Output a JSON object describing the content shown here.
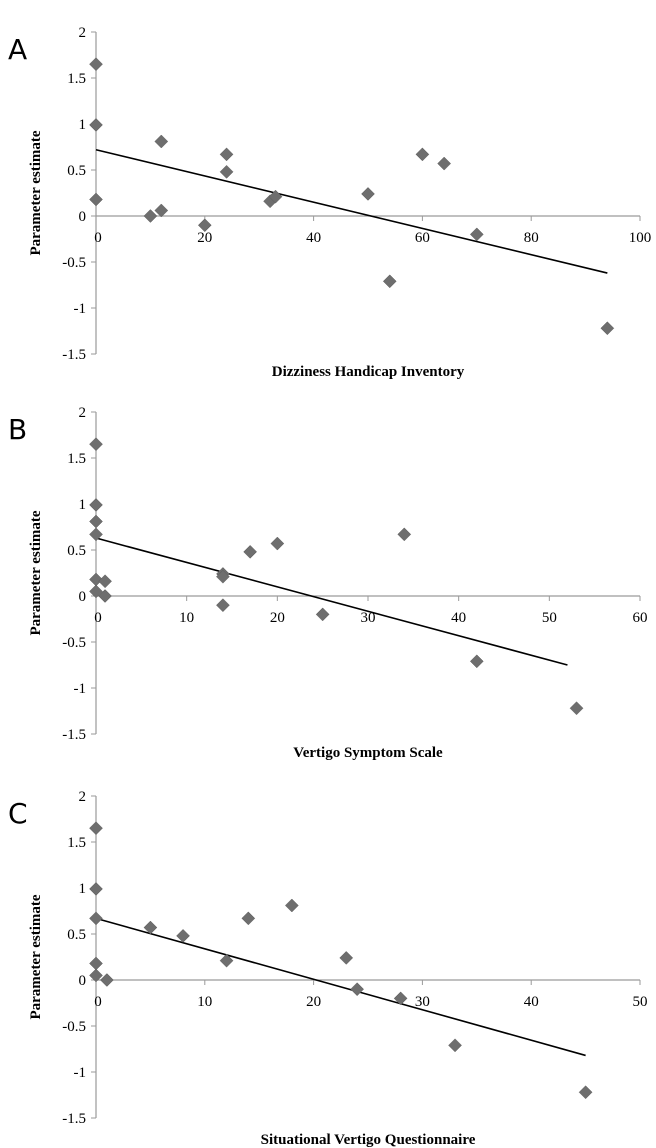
{
  "chart_data": [
    {
      "type": "scatter",
      "panel_label": "A",
      "xlabel": "Dizziness Handicap Inventory",
      "ylabel": "Parameter estimate",
      "xlim": [
        0,
        100
      ],
      "ylim": [
        -1.5,
        2
      ],
      "x_ticks": [
        "0",
        "20",
        "40",
        "60",
        "80",
        "100"
      ],
      "y_ticks": [
        "2",
        "1.5",
        "1",
        "0.5",
        "0",
        "-0.5",
        "-1",
        "-1.5"
      ],
      "points": [
        {
          "x": 0,
          "y": 1.65
        },
        {
          "x": 0,
          "y": 0.99
        },
        {
          "x": 0,
          "y": 0.18
        },
        {
          "x": 10,
          "y": 0.0
        },
        {
          "x": 12,
          "y": 0.81
        },
        {
          "x": 12,
          "y": 0.06
        },
        {
          "x": 20,
          "y": -0.1
        },
        {
          "x": 24,
          "y": 0.67
        },
        {
          "x": 24,
          "y": 0.48
        },
        {
          "x": 32,
          "y": 0.16
        },
        {
          "x": 33,
          "y": 0.21
        },
        {
          "x": 50,
          "y": 0.24
        },
        {
          "x": 54,
          "y": -0.71
        },
        {
          "x": 60,
          "y": 0.67
        },
        {
          "x": 64,
          "y": 0.57
        },
        {
          "x": 70,
          "y": -0.2
        },
        {
          "x": 94,
          "y": -1.22
        }
      ],
      "trendline": {
        "x": [
          0,
          94
        ],
        "y": [
          0.72,
          -0.62
        ]
      },
      "grid": false,
      "legend": "none"
    },
    {
      "type": "scatter",
      "panel_label": "B",
      "xlabel": "Vertigo Symptom Scale",
      "ylabel": "Parameter estimate",
      "xlim": [
        0,
        60
      ],
      "ylim": [
        -1.5,
        2
      ],
      "x_ticks": [
        "0",
        "10",
        "20",
        "30",
        "40",
        "50",
        "60"
      ],
      "y_ticks": [
        "2",
        "1.5",
        "1",
        "0.5",
        "0",
        "-0.5",
        "-1",
        "-1.5"
      ],
      "points": [
        {
          "x": 0,
          "y": 1.65
        },
        {
          "x": 0,
          "y": 0.99
        },
        {
          "x": 0,
          "y": 0.81
        },
        {
          "x": 0,
          "y": 0.67
        },
        {
          "x": 0,
          "y": 0.18
        },
        {
          "x": 0,
          "y": 0.05
        },
        {
          "x": 1,
          "y": 0.16
        },
        {
          "x": 1,
          "y": 0.0
        },
        {
          "x": 14,
          "y": 0.24
        },
        {
          "x": 14,
          "y": 0.21
        },
        {
          "x": 14,
          "y": -0.1
        },
        {
          "x": 17,
          "y": 0.48
        },
        {
          "x": 20,
          "y": 0.57
        },
        {
          "x": 25,
          "y": -0.2
        },
        {
          "x": 34,
          "y": 0.67
        },
        {
          "x": 42,
          "y": -0.71
        },
        {
          "x": 53,
          "y": -1.22
        }
      ],
      "trendline": {
        "x": [
          0,
          52
        ],
        "y": [
          0.63,
          -0.75
        ]
      },
      "grid": false,
      "legend": "none"
    },
    {
      "type": "scatter",
      "panel_label": "C",
      "xlabel": "Situational Vertigo Questionnaire",
      "ylabel": "Parameter estimate",
      "xlim": [
        0,
        50
      ],
      "ylim": [
        -1.5,
        2
      ],
      "x_ticks": [
        "0",
        "10",
        "20",
        "30",
        "40",
        "50"
      ],
      "y_ticks": [
        "2",
        "1.5",
        "1",
        "0.5",
        "0",
        "-0.5",
        "-1",
        "-1.5"
      ],
      "points": [
        {
          "x": 0,
          "y": 1.65
        },
        {
          "x": 0,
          "y": 0.99
        },
        {
          "x": 0,
          "y": 0.67
        },
        {
          "x": 0,
          "y": 0.18
        },
        {
          "x": 0,
          "y": 0.05
        },
        {
          "x": 1,
          "y": 0.0
        },
        {
          "x": 5,
          "y": 0.57
        },
        {
          "x": 8,
          "y": 0.48
        },
        {
          "x": 12,
          "y": 0.21
        },
        {
          "x": 14,
          "y": 0.67
        },
        {
          "x": 18,
          "y": 0.81
        },
        {
          "x": 23,
          "y": 0.24
        },
        {
          "x": 24,
          "y": -0.1
        },
        {
          "x": 28,
          "y": -0.2
        },
        {
          "x": 33,
          "y": -0.71
        },
        {
          "x": 45,
          "y": -1.22
        }
      ],
      "trendline": {
        "x": [
          0,
          45
        ],
        "y": [
          0.67,
          -0.82
        ]
      },
      "grid": false,
      "legend": "none"
    }
  ]
}
